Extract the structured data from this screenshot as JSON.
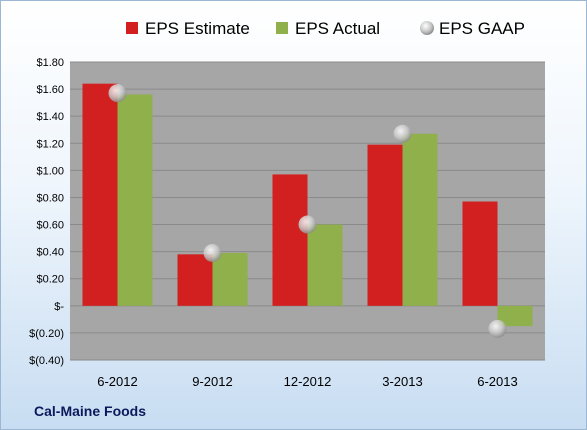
{
  "chart_data": {
    "type": "bar",
    "company": "Cal-Maine Foods",
    "categories": [
      "6-2012",
      "9-2012",
      "12-2012",
      "3-2013",
      "6-2013"
    ],
    "series": [
      {
        "name": "EPS Estimate",
        "kind": "bar",
        "color": "#d21f1f",
        "values": [
          1.64,
          0.38,
          0.97,
          1.19,
          0.77
        ]
      },
      {
        "name": "EPS Actual",
        "kind": "bar",
        "color": "#8fb04a",
        "values": [
          1.56,
          0.39,
          0.6,
          1.27,
          -0.15
        ]
      },
      {
        "name": "EPS GAAP",
        "kind": "marker",
        "color": "#c8c8c8",
        "values": [
          1.57,
          0.39,
          0.6,
          1.27,
          -0.17
        ]
      }
    ],
    "ylim": [
      -0.4,
      1.8
    ],
    "yticks": [
      {
        "value": 1.8,
        "label": "$1.80"
      },
      {
        "value": 1.6,
        "label": "$1.60"
      },
      {
        "value": 1.4,
        "label": "$1.40"
      },
      {
        "value": 1.2,
        "label": "$1.20"
      },
      {
        "value": 1.0,
        "label": "$1.00"
      },
      {
        "value": 0.8,
        "label": "$0.80"
      },
      {
        "value": 0.6,
        "label": "$0.60"
      },
      {
        "value": 0.4,
        "label": "$0.40"
      },
      {
        "value": 0.2,
        "label": "$0.20"
      },
      {
        "value": 0.0,
        "label": "$-"
      },
      {
        "value": -0.2,
        "label": "$(0.20)"
      },
      {
        "value": -0.4,
        "label": "$(0.40)"
      }
    ],
    "grid": true,
    "legend_position": "top"
  }
}
